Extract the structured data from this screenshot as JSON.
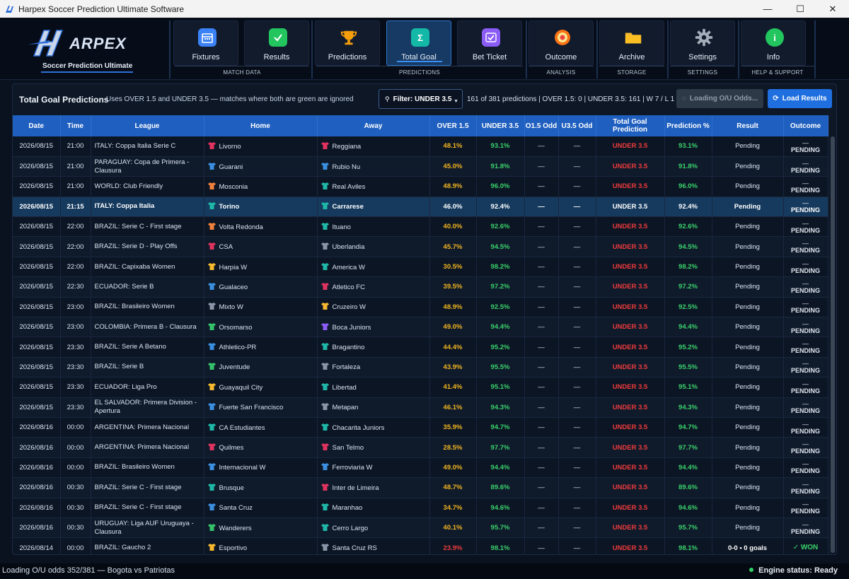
{
  "window": {
    "title": "Harpex Soccer Prediction Ultimate Software",
    "buttons": {
      "minimize": "—",
      "maximize": "☐",
      "close": "✕"
    }
  },
  "logo": {
    "name": "ARPEX",
    "subtitle": "Soccer Prediction Ultimate"
  },
  "ribbon": {
    "buttons": [
      {
        "label": "Fixtures",
        "icon": "calendar-icon",
        "color": "#3b82f6"
      },
      {
        "label": "Results",
        "icon": "checkmark-icon",
        "color": "#22c55e"
      },
      {
        "label": "Predictions",
        "icon": "trophy-icon",
        "color": "#f59e0b"
      },
      {
        "label": "Total Goal",
        "icon": "sigma-icon",
        "color": "#14b8a6",
        "active": true
      },
      {
        "label": "Bet Ticket",
        "icon": "ticket-check-icon",
        "color": "#8b5cf6"
      },
      {
        "label": "Outcome",
        "icon": "target-icon",
        "color": "#f97316"
      },
      {
        "label": "Archive",
        "icon": "folder-icon",
        "color": "#f5b82e"
      },
      {
        "label": "Settings",
        "icon": "gear-icon",
        "color": "#9ca3af"
      },
      {
        "label": "Info",
        "icon": "info-icon",
        "color": "#22c55e"
      }
    ],
    "groups": [
      "MATCH DATA",
      "PREDICTIONS",
      "ANALYSIS",
      "STORAGE",
      "SETTINGS",
      "HELP & SUPPORT"
    ]
  },
  "toolbar": {
    "title": "Total Goal Predictions",
    "description": "Uses OVER 1.5 and UNDER 3.5 — matches where both are green are ignored",
    "filter": "Filter: UNDER 3.5",
    "stats": "161 of 381 predictions  |  OVER 1.5: 0  |  UNDER 3.5: 161  |  W 7 / L 1",
    "loading_button": "Loading O/U Odds...",
    "load_results_button": "Load Results"
  },
  "table": {
    "columns": [
      "Date",
      "Time",
      "League",
      "Home",
      "Away",
      "OVER 1.5",
      "UNDER 3.5",
      "O1.5 Odd",
      "U3.5 Odd",
      "Total Goal Prediction",
      "Prediction %",
      "Result",
      "Outcome"
    ],
    "rows": [
      {
        "date": "2026/08/15",
        "time": "21:00",
        "league": "ITALY: Coppa Italia Serie C",
        "home": "Livorno",
        "home_color": "#e0335f",
        "away": "Reggiana",
        "away_color": "#e0335f",
        "over15": "48.1%",
        "under35": "93.1%",
        "o15odd": "—",
        "u35odd": "—",
        "prediction": "UNDER 3.5",
        "pct": "93.1%",
        "result": "Pending",
        "outcome_dash": "—",
        "outcome": "PENDING"
      },
      {
        "date": "2026/08/15",
        "time": "21:00",
        "league": "PARAGUAY: Copa de Primera - Clausura",
        "home": "Guarani",
        "home_color": "#3a8fe0",
        "away": "Rubio Nu",
        "away_color": "#3a8fe0",
        "over15": "45.0%",
        "under35": "91.8%",
        "o15odd": "—",
        "u35odd": "—",
        "prediction": "UNDER 3.5",
        "pct": "91.8%",
        "result": "Pending",
        "outcome_dash": "—",
        "outcome": "PENDING"
      },
      {
        "date": "2026/08/15",
        "time": "21:00",
        "league": "WORLD: Club Friendly",
        "home": "Mosconia",
        "home_color": "#f0803a",
        "away": "Real Aviles",
        "away_color": "#1fb8a8",
        "over15": "48.9%",
        "under35": "96.0%",
        "o15odd": "—",
        "u35odd": "—",
        "prediction": "UNDER 3.5",
        "pct": "96.0%",
        "result": "Pending",
        "outcome_dash": "—",
        "outcome": "PENDING"
      },
      {
        "date": "2026/08/15",
        "time": "21:15",
        "league": "ITALY: Coppa Italia",
        "home": "Torino",
        "home_color": "#1fb8a8",
        "away": "Carrarese",
        "away_color": "#1fb8a8",
        "over15": "46.0%",
        "under35": "92.4%",
        "o15odd": "—",
        "u35odd": "—",
        "prediction": "UNDER 3.5",
        "pct": "92.4%",
        "result": "Pending",
        "outcome_dash": "—",
        "outcome": "PENDING",
        "selected": true
      },
      {
        "date": "2026/08/15",
        "time": "22:00",
        "league": "BRAZIL: Serie C - First stage",
        "home": "Volta Redonda",
        "home_color": "#f0803a",
        "away": "Ituano",
        "away_color": "#1fb8a8",
        "over15": "40.0%",
        "under35": "92.6%",
        "o15odd": "—",
        "u35odd": "—",
        "prediction": "UNDER 3.5",
        "pct": "92.6%",
        "result": "Pending",
        "outcome_dash": "—",
        "outcome": "PENDING"
      },
      {
        "date": "2026/08/15",
        "time": "22:00",
        "league": "BRAZIL: Serie D - Play Offs",
        "home": "CSA",
        "home_color": "#e0335f",
        "away": "Uberlandia",
        "away_color": "#8a95a8",
        "over15": "45.7%",
        "under35": "94.5%",
        "o15odd": "—",
        "u35odd": "—",
        "prediction": "UNDER 3.5",
        "pct": "94.5%",
        "result": "Pending",
        "outcome_dash": "—",
        "outcome": "PENDING"
      },
      {
        "date": "2026/08/15",
        "time": "22:00",
        "league": "BRAZIL: Capixaba Women",
        "home": "Harpia W",
        "home_color": "#f5b82e",
        "away": "America W",
        "away_color": "#1fb8a8",
        "over15": "30.5%",
        "under35": "98.2%",
        "o15odd": "—",
        "u35odd": "—",
        "prediction": "UNDER 3.5",
        "pct": "98.2%",
        "result": "Pending",
        "outcome_dash": "—",
        "outcome": "PENDING"
      },
      {
        "date": "2026/08/15",
        "time": "22:30",
        "league": "ECUADOR: Serie B",
        "home": "Gualaceo",
        "home_color": "#3a8fe0",
        "away": "Atletico FC",
        "away_color": "#e0335f",
        "over15": "39.5%",
        "under35": "97.2%",
        "o15odd": "—",
        "u35odd": "—",
        "prediction": "UNDER 3.5",
        "pct": "97.2%",
        "result": "Pending",
        "outcome_dash": "—",
        "outcome": "PENDING"
      },
      {
        "date": "2026/08/15",
        "time": "23:00",
        "league": "BRAZIL: Brasileiro Women",
        "home": "Mixto W",
        "home_color": "#8a95a8",
        "away": "Cruzeiro W",
        "away_color": "#f5b82e",
        "over15": "48.9%",
        "under35": "92.5%",
        "o15odd": "—",
        "u35odd": "—",
        "prediction": "UNDER 3.5",
        "pct": "92.5%",
        "result": "Pending",
        "outcome_dash": "—",
        "outcome": "PENDING"
      },
      {
        "date": "2026/08/15",
        "time": "23:00",
        "league": "COLOMBIA: Primera B - Clausura",
        "home": "Orsomarso",
        "home_color": "#34c26a",
        "away": "Boca Juniors",
        "away_color": "#8b5cf6",
        "over15": "49.0%",
        "under35": "94.4%",
        "o15odd": "—",
        "u35odd": "—",
        "prediction": "UNDER 3.5",
        "pct": "94.4%",
        "result": "Pending",
        "outcome_dash": "—",
        "outcome": "PENDING"
      },
      {
        "date": "2026/08/15",
        "time": "23:30",
        "league": "BRAZIL: Serie A Betano",
        "home": "Athletico-PR",
        "home_color": "#3a8fe0",
        "away": "Bragantino",
        "away_color": "#1fb8a8",
        "over15": "44.4%",
        "under35": "95.2%",
        "o15odd": "—",
        "u35odd": "—",
        "prediction": "UNDER 3.5",
        "pct": "95.2%",
        "result": "Pending",
        "outcome_dash": "—",
        "outcome": "PENDING"
      },
      {
        "date": "2026/08/15",
        "time": "23:30",
        "league": "BRAZIL: Serie B",
        "home": "Juventude",
        "home_color": "#34c26a",
        "away": "Fortaleza",
        "away_color": "#8a95a8",
        "over15": "43.9%",
        "under35": "95.5%",
        "o15odd": "—",
        "u35odd": "—",
        "prediction": "UNDER 3.5",
        "pct": "95.5%",
        "result": "Pending",
        "outcome_dash": "—",
        "outcome": "PENDING"
      },
      {
        "date": "2026/08/15",
        "time": "23:30",
        "league": "ECUADOR: Liga Pro",
        "home": "Guayaquil City",
        "home_color": "#f5b82e",
        "away": "Libertad",
        "away_color": "#1fb8a8",
        "over15": "41.4%",
        "under35": "95.1%",
        "o15odd": "—",
        "u35odd": "—",
        "prediction": "UNDER 3.5",
        "pct": "95.1%",
        "result": "Pending",
        "outcome_dash": "—",
        "outcome": "PENDING"
      },
      {
        "date": "2026/08/15",
        "time": "23:30",
        "league": "EL SALVADOR: Primera Division - Apertura",
        "home": "Fuerte San Francisco",
        "home_color": "#3a8fe0",
        "away": "Metapan",
        "away_color": "#8a95a8",
        "over15": "46.1%",
        "under35": "94.3%",
        "o15odd": "—",
        "u35odd": "—",
        "prediction": "UNDER 3.5",
        "pct": "94.3%",
        "result": "Pending",
        "outcome_dash": "—",
        "outcome": "PENDING"
      },
      {
        "date": "2026/08/16",
        "time": "00:00",
        "league": "ARGENTINA: Primera Nacional",
        "home": "CA Estudiantes",
        "home_color": "#1fb8a8",
        "away": "Chacarita Juniors",
        "away_color": "#1fb8a8",
        "over15": "35.9%",
        "under35": "94.7%",
        "o15odd": "—",
        "u35odd": "—",
        "prediction": "UNDER 3.5",
        "pct": "94.7%",
        "result": "Pending",
        "outcome_dash": "—",
        "outcome": "PENDING"
      },
      {
        "date": "2026/08/16",
        "time": "00:00",
        "league": "ARGENTINA: Primera Nacional",
        "home": "Quilmes",
        "home_color": "#e0335f",
        "away": "San Telmo",
        "away_color": "#e0335f",
        "over15": "28.5%",
        "under35": "97.7%",
        "o15odd": "—",
        "u35odd": "—",
        "prediction": "UNDER 3.5",
        "pct": "97.7%",
        "result": "Pending",
        "outcome_dash": "—",
        "outcome": "PENDING"
      },
      {
        "date": "2026/08/16",
        "time": "00:00",
        "league": "BRAZIL: Brasileiro Women",
        "home": "Internacional W",
        "home_color": "#3a8fe0",
        "away": "Ferroviaria W",
        "away_color": "#3a8fe0",
        "over15": "49.0%",
        "under35": "94.4%",
        "o15odd": "—",
        "u35odd": "—",
        "prediction": "UNDER 3.5",
        "pct": "94.4%",
        "result": "Pending",
        "outcome_dash": "—",
        "outcome": "PENDING"
      },
      {
        "date": "2026/08/16",
        "time": "00:30",
        "league": "BRAZIL: Serie C - First stage",
        "home": "Brusque",
        "home_color": "#1fb8a8",
        "away": "Inter de Limeira",
        "away_color": "#e0335f",
        "over15": "48.7%",
        "under35": "89.6%",
        "o15odd": "—",
        "u35odd": "—",
        "prediction": "UNDER 3.5",
        "pct": "89.6%",
        "result": "Pending",
        "outcome_dash": "—",
        "outcome": "PENDING"
      },
      {
        "date": "2026/08/16",
        "time": "00:30",
        "league": "BRAZIL: Serie C - First stage",
        "home": "Santa Cruz",
        "home_color": "#3a8fe0",
        "away": "Maranhao",
        "away_color": "#1fb8a8",
        "over15": "34.7%",
        "under35": "94.6%",
        "o15odd": "—",
        "u35odd": "—",
        "prediction": "UNDER 3.5",
        "pct": "94.6%",
        "result": "Pending",
        "outcome_dash": "—",
        "outcome": "PENDING"
      },
      {
        "date": "2026/08/16",
        "time": "00:30",
        "league": "URUGUAY: Liga AUF Uruguaya - Clausura",
        "home": "Wanderers",
        "home_color": "#34c26a",
        "away": "Cerro Largo",
        "away_color": "#1fb8a8",
        "over15": "40.1%",
        "under35": "95.7%",
        "o15odd": "—",
        "u35odd": "—",
        "prediction": "UNDER 3.5",
        "pct": "95.7%",
        "result": "Pending",
        "outcome_dash": "—",
        "outcome": "PENDING"
      },
      {
        "date": "2026/08/14",
        "time": "00:00",
        "league": "BRAZIL: Gaucho 2",
        "home": "Esportivo",
        "home_color": "#f5b82e",
        "away": "Santa Cruz RS",
        "away_color": "#8a95a8",
        "over15": "23.9%",
        "under35": "98.1%",
        "o15odd": "—",
        "u35odd": "—",
        "prediction": "UNDER 3.5",
        "pct": "98.1%",
        "result": "0-0  •  0 goals",
        "outcome_dash": "",
        "outcome": "✓  WON",
        "won": true,
        "low_over": true
      }
    ]
  },
  "status": {
    "message": "Loading O/U odds 352/381 — Bogota vs Patriotas",
    "engine": "Engine status: Ready"
  }
}
